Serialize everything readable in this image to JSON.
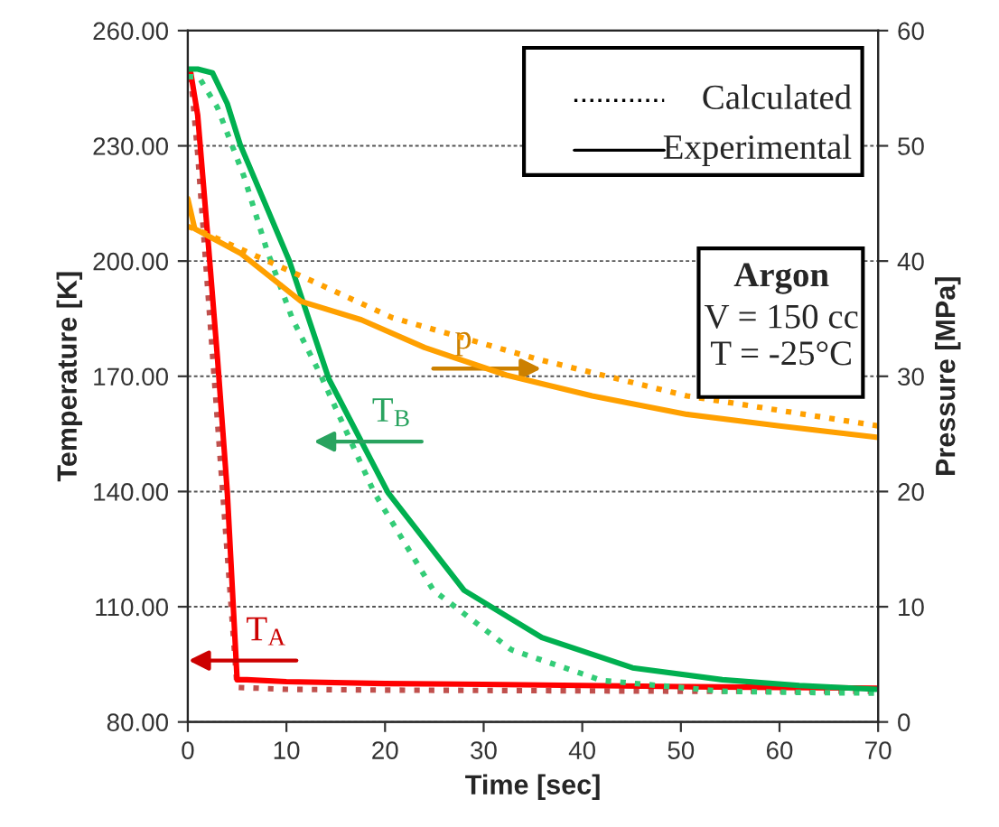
{
  "chart_data": {
    "type": "line",
    "xlabel": "Time [sec]",
    "ylabel": "Temperature [K]",
    "y2label": "Pressure [MPa]",
    "xlim": [
      0,
      70
    ],
    "xticks": [
      0,
      10,
      20,
      30,
      40,
      50,
      60,
      70
    ],
    "ylim": [
      80,
      260
    ],
    "yticks": [
      {
        "value": 80,
        "label": "80.00"
      },
      {
        "value": 110,
        "label": "110.00"
      },
      {
        "value": 140,
        "label": "140.00"
      },
      {
        "value": 170,
        "label": "170.00"
      },
      {
        "value": 200,
        "label": "200.00"
      },
      {
        "value": 230,
        "label": "230.00"
      },
      {
        "value": 260,
        "label": "260.00"
      }
    ],
    "y2lim": [
      0,
      60
    ],
    "y2ticks": [
      0,
      10,
      20,
      30,
      40,
      50,
      60
    ],
    "grid": "y",
    "series": [
      {
        "color": "#c0504d",
        "line_style": "dotted",
        "x": [
          0.3,
          1,
          5,
          10,
          20,
          30,
          40,
          50,
          60,
          70
        ],
        "values": [
          248,
          228,
          89,
          88.5,
          88.3,
          88.2,
          88.1,
          88,
          88,
          88
        ]
      },
      {
        "color": "#ff0000",
        "line_style": "solid",
        "x": [
          0.3,
          1,
          2,
          3,
          4,
          5,
          6,
          10,
          20,
          30,
          40,
          50,
          60,
          70
        ],
        "values": [
          249,
          238,
          207,
          175,
          140,
          91,
          91,
          90.5,
          90,
          89.8,
          89.5,
          89.2,
          89,
          88.8
        ]
      },
      {
        "color": "#33cc77",
        "line_style": "dotted",
        "x": [
          0,
          1.1,
          3,
          5.7,
          8,
          10.6,
          13.4,
          18.9,
          24.9,
          32.8,
          42,
          54.2,
          62,
          70
        ],
        "values": [
          248,
          248,
          240,
          222,
          203,
          185,
          170.7,
          139.7,
          114.3,
          98.8,
          90.8,
          88,
          87.7,
          87.5
        ]
      },
      {
        "color": "#00b050",
        "line_style": "solid",
        "x": [
          0,
          1,
          2.5,
          4,
          5.3,
          8,
          10.3,
          14.3,
          20.3,
          28,
          35.9,
          45.1,
          54.2,
          62,
          69.8
        ],
        "values": [
          250,
          250,
          249,
          241,
          230.4,
          214,
          200,
          169.3,
          139.7,
          114.3,
          102,
          94.1,
          91,
          89.5,
          88.5
        ]
      },
      {
        "color": "#ffa000",
        "line_style": "dotted",
        "axis": "y2",
        "x": [
          0,
          1,
          11.5,
          20.7,
          35.4,
          50.6,
          70
        ],
        "values": [
          43,
          42.7,
          38.7,
          35.1,
          31.5,
          28.3,
          25.7
        ]
      },
      {
        "color": "#ffa000",
        "line_style": "solid",
        "axis": "y2",
        "x": [
          0,
          0.7,
          5.3,
          11.5,
          17.6,
          24,
          32.3,
          41,
          50.6,
          60,
          70
        ],
        "values": [
          45.4,
          42.8,
          40.7,
          36.5,
          34.9,
          32.5,
          30.1,
          28.3,
          26.7,
          25.7,
          24.7
        ]
      }
    ],
    "annotations": [
      {
        "text": "p",
        "x": 31,
        "y": 172
      },
      {
        "text": "T$_{B}$",
        "x": 17.6,
        "y": 153
      },
      {
        "text": "T$_{A}$",
        "x": 4.9,
        "y": 96
      },
      "Calculated",
      "Experimental",
      "Argon",
      "V = 150 cc",
      "T = -25°C"
    ]
  }
}
